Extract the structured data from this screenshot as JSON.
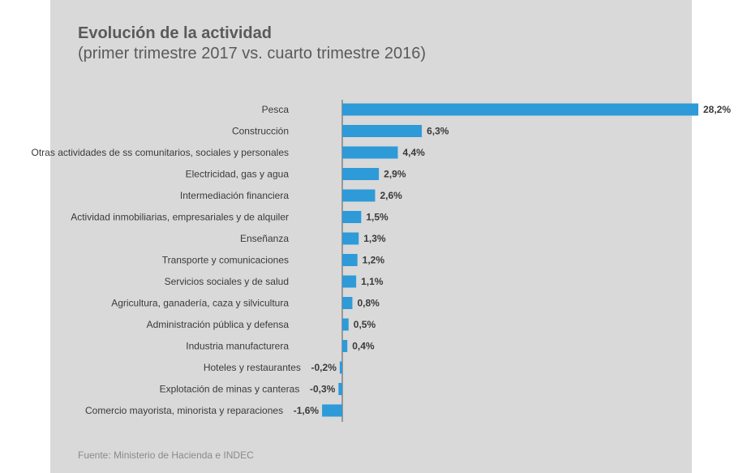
{
  "chart_data": {
    "type": "bar",
    "orientation": "horizontal",
    "title": "Evolución de la actividad",
    "subtitle": "(primer trimestre 2017 vs. cuarto trimestre 2016)",
    "source": "Fuente: Ministerio de Hacienda e INDEC",
    "bar_color": "#2e9ad8",
    "categories": [
      "Pesca",
      "Construcción",
      "Otras actividades de ss comunitarios, sociales y personales",
      "Electricidad, gas y agua",
      "Intermediación financiera",
      "Actividad inmobiliarias, empresariales y de alquiler",
      "Enseñanza",
      "Transporte y comunicaciones",
      "Servicios sociales y de salud",
      "Agricultura, ganadería, caza y silvicultura",
      "Administración pública y defensa",
      "Industria manufacturera",
      "Hoteles y restaurantes",
      "Explotación de minas y canteras",
      "Comercio mayorista, minorista y reparaciones"
    ],
    "values": [
      28.2,
      6.3,
      4.4,
      2.9,
      2.6,
      1.5,
      1.3,
      1.2,
      1.1,
      0.8,
      0.5,
      0.4,
      -0.2,
      -0.3,
      -1.6
    ],
    "value_labels": [
      "28,2%",
      "6,3%",
      "4,4%",
      "2,9%",
      "2,6%",
      "1,5%",
      "1,3%",
      "1,2%",
      "1,1%",
      "0,8%",
      "0,5%",
      "0,4%",
      "-0,2%",
      "-0,3%",
      "-1,6%"
    ],
    "xlabel": "",
    "ylabel": "",
    "grid": false,
    "legend": "none"
  }
}
